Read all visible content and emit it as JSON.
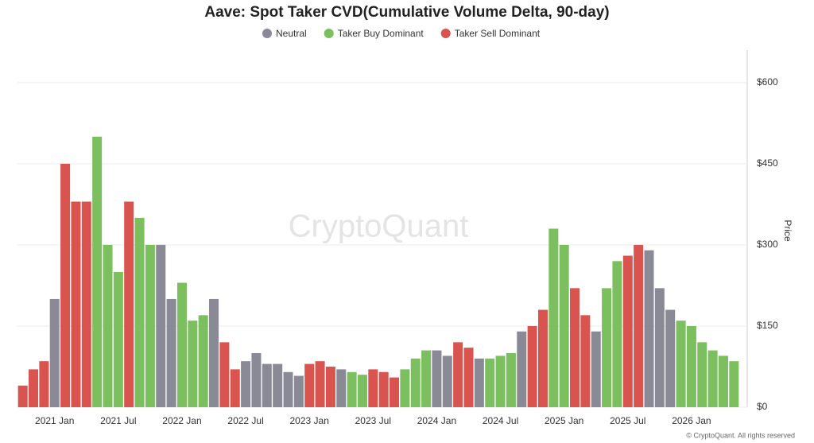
{
  "chart_data": {
    "type": "bar",
    "title": "Aave: Spot Taker CVD(Cumulative Volume Delta, 90-day)",
    "watermark": "CryptoQuant",
    "footer": "© CryptoQuant. All rights reserved",
    "y_axis_label": "Price",
    "legend": [
      {
        "name": "Neutral",
        "color": "#8a8a96"
      },
      {
        "name": "Taker Buy Dominant",
        "color": "#7cbf5e"
      },
      {
        "name": "Taker Sell Dominant",
        "color": "#d9534f"
      }
    ],
    "categories": [
      null,
      null,
      null,
      "2021 Jan",
      null,
      null,
      null,
      null,
      null,
      "2021 Jul",
      null,
      null,
      null,
      null,
      null,
      "2022 Jan",
      null,
      null,
      null,
      null,
      null,
      "2022 Jul",
      null,
      null,
      null,
      null,
      null,
      "2023 Jan",
      null,
      null,
      null,
      null,
      null,
      "2023 Jul",
      null,
      null,
      null,
      null,
      null,
      "2024 Jan",
      null,
      null,
      null,
      null,
      null,
      "2024 Jul",
      null,
      null,
      null,
      null,
      null,
      "2025 Jan",
      null,
      null,
      null,
      null,
      null,
      "2025 Jul",
      null,
      null,
      null,
      null,
      null,
      "2026 Jan",
      null,
      null,
      null,
      null
    ],
    "values": [
      40,
      70,
      85,
      200,
      450,
      380,
      380,
      500,
      300,
      250,
      380,
      350,
      300,
      300,
      200,
      230,
      160,
      170,
      200,
      120,
      70,
      85,
      100,
      80,
      80,
      65,
      58,
      80,
      85,
      75,
      70,
      65,
      60,
      70,
      65,
      55,
      70,
      90,
      105,
      105,
      95,
      120,
      110,
      90,
      90,
      95,
      100,
      140,
      150,
      180,
      330,
      300,
      220,
      170,
      140,
      220,
      270,
      280,
      300,
      290,
      220,
      180,
      160,
      150,
      120,
      105,
      95,
      85
    ],
    "colors": [
      "#d9534f",
      "#d9534f",
      "#d9534f",
      "#8a8a96",
      "#d9534f",
      "#d9534f",
      "#d9534f",
      "#7cbf5e",
      "#7cbf5e",
      "#7cbf5e",
      "#d9534f",
      "#7cbf5e",
      "#7cbf5e",
      "#8a8a96",
      "#8a8a96",
      "#7cbf5e",
      "#7cbf5e",
      "#7cbf5e",
      "#8a8a96",
      "#d9534f",
      "#d9534f",
      "#8a8a96",
      "#8a8a96",
      "#8a8a96",
      "#8a8a96",
      "#8a8a96",
      "#8a8a96",
      "#d9534f",
      "#d9534f",
      "#d9534f",
      "#8a8a96",
      "#7cbf5e",
      "#7cbf5e",
      "#d9534f",
      "#d9534f",
      "#d9534f",
      "#7cbf5e",
      "#7cbf5e",
      "#7cbf5e",
      "#8a8a96",
      "#8a8a96",
      "#d9534f",
      "#d9534f",
      "#8a8a96",
      "#7cbf5e",
      "#7cbf5e",
      "#7cbf5e",
      "#8a8a96",
      "#d9534f",
      "#d9534f",
      "#7cbf5e",
      "#7cbf5e",
      "#d9534f",
      "#d9534f",
      "#8a8a96",
      "#7cbf5e",
      "#7cbf5e",
      "#d9534f",
      "#d9534f",
      "#8a8a96",
      "#8a8a96",
      "#8a8a96",
      "#7cbf5e",
      "#7cbf5e",
      "#7cbf5e",
      "#7cbf5e",
      "#7cbf5e",
      "#7cbf5e"
    ],
    "ylim": [
      0,
      660
    ],
    "yticks": [
      {
        "value": 0,
        "label": "$0"
      },
      {
        "value": 150,
        "label": "$150"
      },
      {
        "value": 300,
        "label": "$300"
      },
      {
        "value": 450,
        "label": "$450"
      },
      {
        "value": 600,
        "label": "$600"
      }
    ],
    "grid": true
  }
}
